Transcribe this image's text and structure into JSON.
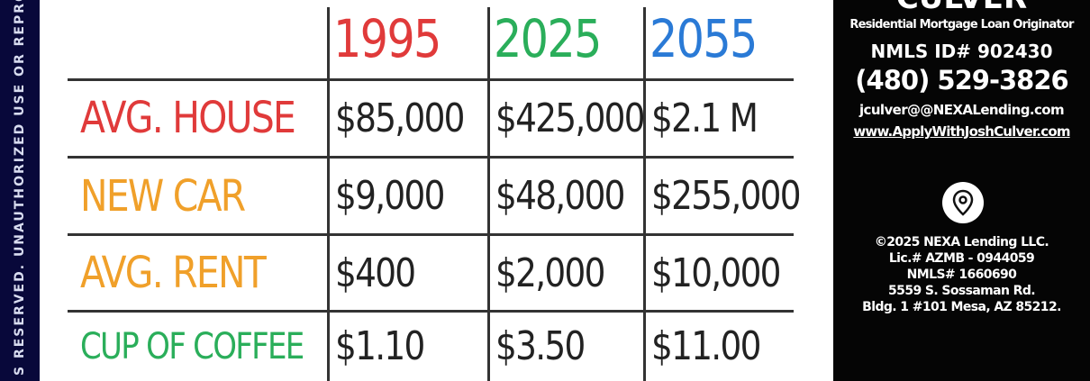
{
  "side_notice": "S RESERVED. UNAUTHORIZED USE OR REPRO",
  "table": {
    "years": [
      {
        "label": "1995",
        "color": "#e03a3a"
      },
      {
        "label": "2025",
        "color": "#2aae5a"
      },
      {
        "label": "2055",
        "color": "#2a7ad6"
      }
    ],
    "rows": [
      {
        "label": "AVG. HOUSE",
        "color": "#e03a3a",
        "values": [
          "$85,000",
          "$425,000",
          "$2.1 M"
        ]
      },
      {
        "label": "NEW CAR",
        "color": "#f0a02a",
        "values": [
          "$9,000",
          "$48,000",
          "$255,000"
        ]
      },
      {
        "label": "AVG. RENT",
        "color": "#f0a02a",
        "values": [
          "$400",
          "$2,000",
          "$10,000"
        ]
      },
      {
        "label": "CUP OF COFFEE",
        "color": "#2aae5a",
        "values": [
          "$1.10",
          "$3.50",
          "$11.00"
        ]
      }
    ]
  },
  "contact": {
    "name": "CULVER",
    "title": "Residential Mortgage Loan Originator",
    "nmls_id": "NMLS ID# 902430",
    "phone": "(480) 529-3826",
    "email": "jculver@@NEXALending.com",
    "website": "www.ApplyWithJoshCulver.com",
    "icon": "location-pin-icon",
    "company": "©2025 NEXA Lending LLC.",
    "license": "Lic.# AZMB - 0944059",
    "company_nmls": "NMLS# 1660690",
    "address1": "5559 S. Sossaman Rd.",
    "address2": "Bldg. 1 #101 Mesa, AZ 85212."
  }
}
